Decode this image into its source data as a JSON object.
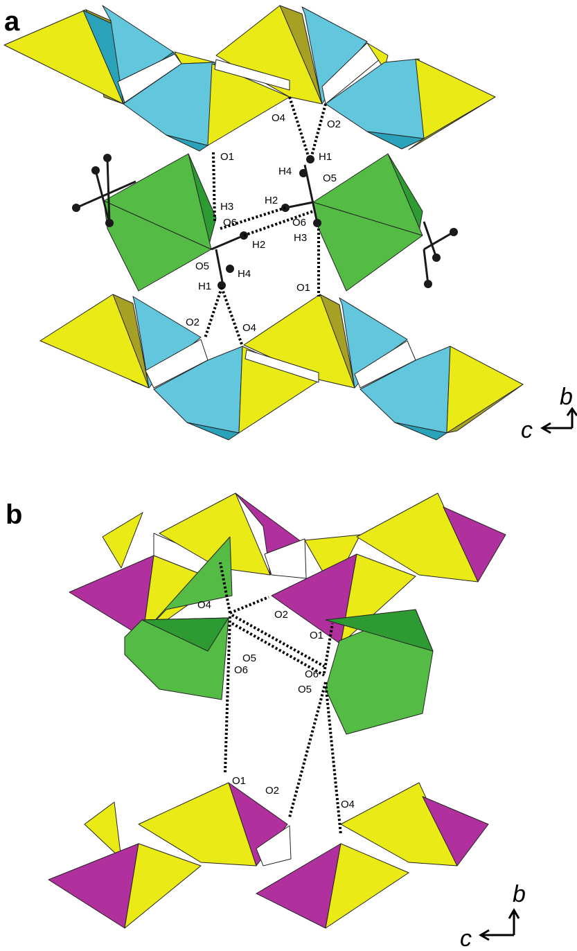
{
  "panels": [
    {
      "letter": "a",
      "labels": [
        "O1",
        "O4",
        "O2",
        "H1",
        "H4",
        "O5",
        "H2",
        "H3",
        "O6",
        "O6",
        "H2",
        "H3",
        "O5",
        "H4",
        "H1",
        "O1",
        "O2",
        "O4"
      ]
    },
    {
      "letter": "b",
      "labels": [
        "O4",
        "O2",
        "O1",
        "O5",
        "O6",
        "O6",
        "O5",
        "O1",
        "O2",
        "O4"
      ]
    }
  ],
  "axes": [
    {
      "vertical": "b",
      "horizontal": "c"
    },
    {
      "vertical": "b",
      "horizontal": "c"
    }
  ],
  "colors": {
    "yellow": "#eaea16",
    "yellow_dark": "#a6a124",
    "cyan": "#62c6dc",
    "cyan_dark": "#2aa2b9",
    "green": "#54bc44",
    "green_dark": "#2e9a32",
    "magenta": "#b0309e",
    "atom": "#1a1a1a"
  }
}
